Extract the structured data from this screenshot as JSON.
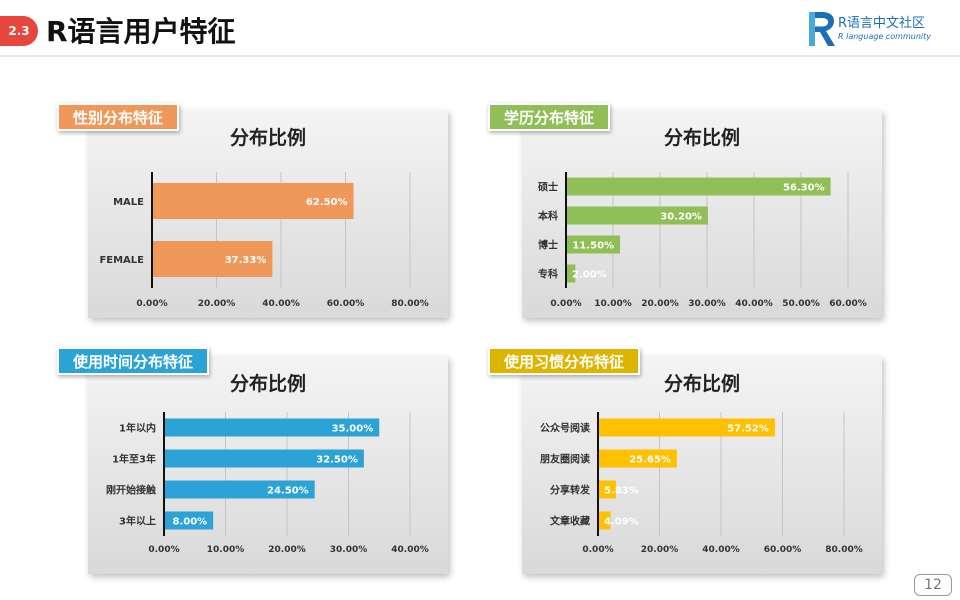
{
  "header": {
    "section": "2.3",
    "title": "R语言用户特征"
  },
  "logo": {
    "name": "R语言中文社区",
    "sub": "R language community"
  },
  "page_number": "12",
  "colors": {
    "gender": "#f0985a",
    "education": "#8fbf56",
    "usage_time": "#2ba3d6",
    "habits": "#ffc000",
    "accent": "#e8453c"
  },
  "panels": [
    {
      "tag": "性别分布特征",
      "icon": "none"
    },
    {
      "tag": "学历分布特征",
      "icon": "none"
    },
    {
      "tag": "使用时间分布特征",
      "icon": "none"
    },
    {
      "tag": "使用习惯分布特征",
      "icon": "none"
    }
  ],
  "chart_data": [
    {
      "type": "bar",
      "orientation": "horizontal",
      "title": "分布比例",
      "categories": [
        "MALE",
        "FEMALE"
      ],
      "values": [
        62.5,
        37.33
      ],
      "value_labels": [
        "62.50%",
        "37.33%"
      ],
      "xlim": [
        0,
        80
      ],
      "xticks": [
        "0.00%",
        "20.00%",
        "40.00%",
        "60.00%",
        "80.00%"
      ],
      "grid": true
    },
    {
      "type": "bar",
      "orientation": "horizontal",
      "title": "分布比例",
      "categories": [
        "硕士",
        "本科",
        "博士",
        "专科"
      ],
      "values": [
        56.3,
        30.2,
        11.5,
        2.0
      ],
      "value_labels": [
        "56.30%",
        "30.20%",
        "11.50%",
        "2.00%"
      ],
      "xlim": [
        0,
        60
      ],
      "xticks": [
        "0.00%",
        "10.00%",
        "20.00%",
        "30.00%",
        "40.00%",
        "50.00%",
        "60.00%"
      ],
      "grid": true
    },
    {
      "type": "bar",
      "orientation": "horizontal",
      "title": "分布比例",
      "categories": [
        "1年以内",
        "1年至3年",
        "刚开始接触",
        "3年以上"
      ],
      "values": [
        35.0,
        32.5,
        24.5,
        8.0
      ],
      "value_labels": [
        "35.00%",
        "32.50%",
        "24.50%",
        "8.00%"
      ],
      "xlim": [
        0,
        40
      ],
      "xticks": [
        "0.00%",
        "10.00%",
        "20.00%",
        "30.00%",
        "40.00%"
      ],
      "grid": true
    },
    {
      "type": "bar",
      "orientation": "horizontal",
      "title": "分布比例",
      "categories": [
        "公众号阅读",
        "朋友圈阅读",
        "分享转发",
        "文章收藏"
      ],
      "values": [
        57.52,
        25.65,
        5.83,
        4.09
      ],
      "value_labels": [
        "57.52%",
        "25.65%",
        "5.83%",
        "4.09%"
      ],
      "xlim": [
        0,
        80
      ],
      "xticks": [
        "0.00%",
        "20.00%",
        "40.00%",
        "60.00%",
        "80.00%"
      ],
      "grid": true
    }
  ]
}
